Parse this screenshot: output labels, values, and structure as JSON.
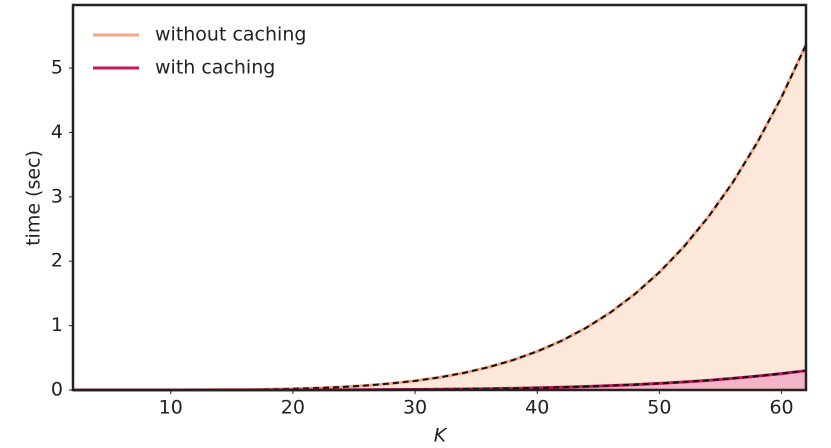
{
  "chart_data": {
    "type": "area_line",
    "x_label": "K",
    "y_label": "time (sec)",
    "x": [
      2,
      4,
      6,
      8,
      10,
      12,
      14,
      16,
      18,
      20,
      22,
      24,
      26,
      28,
      30,
      32,
      34,
      36,
      38,
      40,
      42,
      44,
      46,
      48,
      50,
      52,
      54,
      56,
      58,
      60,
      62
    ],
    "series": [
      {
        "name": "without caching",
        "color": "#f4a582",
        "fill": "#fbe8d8",
        "values": [
          0,
          0,
          0,
          0.0002,
          0.0006,
          0.0015,
          0.0031,
          0.0061,
          0.011,
          0.0187,
          0.0301,
          0.0466,
          0.0696,
          0.1007,
          0.1422,
          0.1963,
          0.2658,
          0.3537,
          0.4635,
          0.5993,
          0.7647,
          0.965,
          1.205,
          1.491,
          1.829,
          2.224,
          2.687,
          3.222,
          3.84,
          4.549,
          5.36
        ]
      },
      {
        "name": "with caching",
        "color": "#c2185b",
        "fill": "#f2b5c8",
        "values": [
          0,
          0,
          0,
          0,
          0,
          0.0001,
          0.0002,
          0.0003,
          0.0006,
          0.001,
          0.0017,
          0.0026,
          0.0039,
          0.0056,
          0.008,
          0.011,
          0.0149,
          0.0198,
          0.0259,
          0.0335,
          0.0428,
          0.054,
          0.0674,
          0.0835,
          0.1023,
          0.1245,
          0.1504,
          0.1803,
          0.215,
          0.2546,
          0.3
        ]
      }
    ],
    "xlim": [
      2,
      62
    ],
    "ylim": [
      0,
      5.98
    ],
    "xticks": [
      10,
      20,
      30,
      40,
      50,
      60
    ],
    "yticks": [
      0,
      1,
      2,
      3,
      4,
      5
    ],
    "legend": "upper left",
    "overlay_dashed": true
  }
}
